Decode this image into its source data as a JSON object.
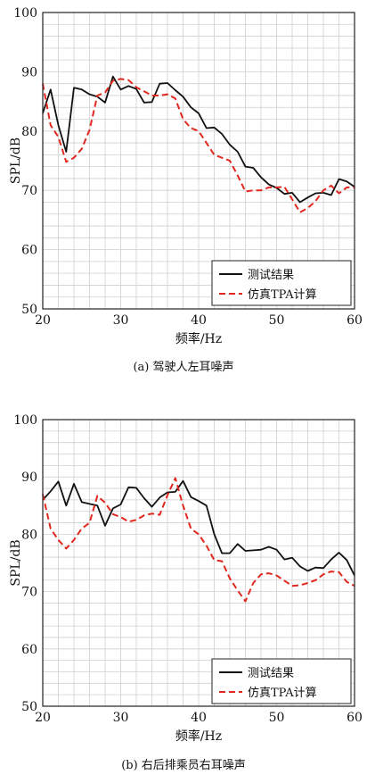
{
  "chart_data": [
    {
      "type": "line",
      "caption": "(a) 驾驶人左耳噪声",
      "xlabel": "频率/Hz",
      "ylabel": "SPL/dB",
      "xlim": [
        20,
        60
      ],
      "ylim": [
        50,
        100
      ],
      "xticks": [
        20,
        30,
        40,
        50,
        60
      ],
      "yticks": [
        50,
        60,
        70,
        80,
        90,
        100
      ],
      "grid": true,
      "legend_position": "bottom-right",
      "series": [
        {
          "name": "测试结果",
          "color": "#111111",
          "style": "solid",
          "x": [
            20,
            21,
            22,
            23,
            24,
            25,
            26,
            27,
            28,
            29,
            30,
            31,
            32,
            33,
            34,
            35,
            36,
            37,
            38,
            39,
            40,
            41,
            42,
            43,
            44,
            45,
            46,
            47,
            48,
            49,
            50,
            51,
            52,
            53,
            54,
            55,
            56,
            57,
            58,
            59,
            60
          ],
          "y": [
            83,
            87,
            81,
            76.5,
            87.3,
            87,
            86.2,
            85.8,
            84.8,
            89.2,
            87,
            87.6,
            87.1,
            84.8,
            84.9,
            88,
            88.1,
            86.9,
            85.8,
            84,
            83,
            80.5,
            80.6,
            79.5,
            77.7,
            76.5,
            74,
            73.8,
            72.2,
            71,
            70.4,
            69.4,
            69.6,
            68,
            68.8,
            69.5,
            69.6,
            69.2,
            71.9,
            71.5,
            70.6
          ]
        },
        {
          "name": "仿真TPA计算",
          "color": "#e0281e",
          "style": "dashed",
          "x": [
            20,
            21,
            22,
            23,
            24,
            25,
            26,
            27,
            28,
            29,
            30,
            31,
            32,
            33,
            34,
            35,
            36,
            37,
            38,
            39,
            40,
            41,
            42,
            43,
            44,
            45,
            46,
            47,
            48,
            49,
            50,
            51,
            52,
            53,
            54,
            55,
            56,
            57,
            58,
            59,
            60
          ],
          "y": [
            88,
            81,
            79,
            74.8,
            75.5,
            77,
            80.2,
            86,
            86.5,
            88.5,
            88.8,
            88.6,
            87.4,
            86.7,
            86,
            86,
            86.2,
            85.5,
            82,
            80.5,
            80,
            78,
            76,
            75.5,
            75,
            72.5,
            69.8,
            70,
            70,
            70.5,
            70.5,
            70.6,
            68.5,
            66.3,
            67,
            68.2,
            70,
            70.8,
            69.5,
            70.5,
            70.5
          ]
        }
      ]
    },
    {
      "type": "line",
      "caption": "(b) 右后排乘员右耳噪声",
      "xlabel": "频率/Hz",
      "ylabel": "SPL/dB",
      "xlim": [
        20,
        60
      ],
      "ylim": [
        50,
        100
      ],
      "xticks": [
        20,
        30,
        40,
        50,
        60
      ],
      "yticks": [
        50,
        60,
        70,
        80,
        90,
        100
      ],
      "grid": true,
      "legend_position": "bottom-right",
      "series": [
        {
          "name": "测试结果",
          "color": "#111111",
          "style": "solid",
          "x": [
            20,
            21,
            22,
            23,
            24,
            25,
            26,
            27,
            28,
            29,
            30,
            31,
            32,
            33,
            34,
            35,
            36,
            37,
            38,
            39,
            40,
            41,
            42,
            43,
            44,
            45,
            46,
            47,
            48,
            49,
            50,
            51,
            52,
            53,
            54,
            55,
            56,
            57,
            58,
            59,
            60
          ],
          "y": [
            86,
            87.5,
            89.2,
            85,
            88.8,
            85.6,
            85.3,
            85,
            81.5,
            84.5,
            85.2,
            88.2,
            88.1,
            86.3,
            84.8,
            86.4,
            87.3,
            87.4,
            89.3,
            86.5,
            85.8,
            85,
            80,
            76.7,
            76.7,
            78.3,
            77.1,
            77.2,
            77.3,
            77.8,
            77.3,
            75.6,
            75.9,
            74.4,
            73.6,
            74.2,
            74.1,
            75.6,
            76.8,
            75.5,
            72.8
          ]
        },
        {
          "name": "仿真TPA计算",
          "color": "#e0281e",
          "style": "dashed",
          "x": [
            20,
            21,
            22,
            23,
            24,
            25,
            26,
            27,
            28,
            29,
            30,
            31,
            32,
            33,
            34,
            35,
            36,
            37,
            38,
            39,
            40,
            41,
            42,
            43,
            44,
            45,
            46,
            47,
            48,
            49,
            50,
            51,
            52,
            53,
            54,
            55,
            56,
            57,
            58,
            59,
            60
          ],
          "y": [
            87,
            81,
            79,
            77.5,
            79,
            81,
            82,
            86.7,
            85.5,
            83.5,
            83,
            82.2,
            82.5,
            83.3,
            83.6,
            83.4,
            86.8,
            89.8,
            85,
            81,
            80,
            78,
            75.5,
            75.3,
            72.3,
            70.2,
            68.3,
            71.5,
            73,
            73.2,
            72.8,
            71.9,
            71,
            71.1,
            71.5,
            72,
            73,
            73.5,
            73.4,
            71.7,
            71
          ]
        }
      ]
    }
  ]
}
